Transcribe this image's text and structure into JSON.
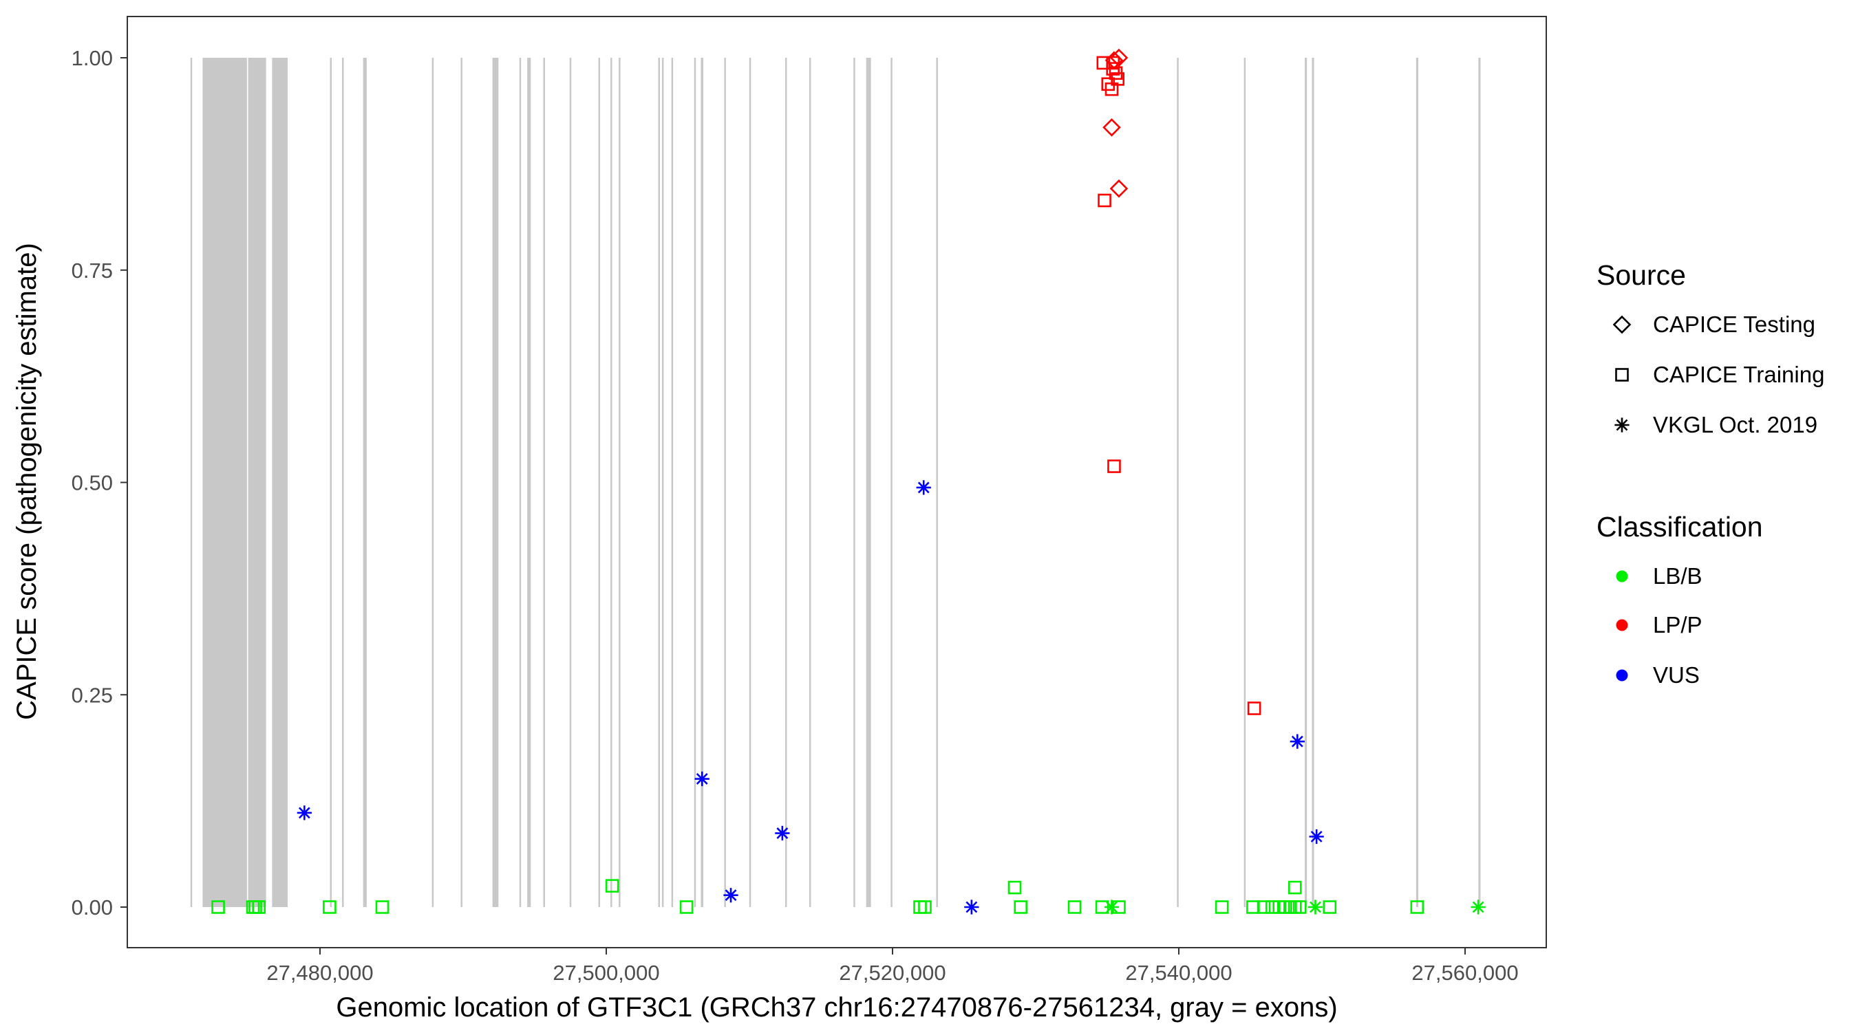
{
  "chart_data": {
    "type": "scatter",
    "xlabel": "Genomic location of GTF3C1 (GRCh37 chr16:27470876-27561234, gray = exons)",
    "ylabel": "CAPICE score (pathogenicity estimate)",
    "xlim": [
      27469000,
      27563000
    ],
    "ylim": [
      -0.046,
      1.05
    ],
    "x_ticks": [
      27480000,
      27500000,
      27520000,
      27540000,
      27560000
    ],
    "x_tick_labels": [
      "27,480,000",
      "27,500,000",
      "27,520,000",
      "27,540,000",
      "27,560,000"
    ],
    "y_ticks": [
      0,
      0.25,
      0.5,
      0.75,
      1.0
    ],
    "y_tick_labels": [
      "0.00",
      "0.25",
      "0.50",
      "0.75",
      "1.00"
    ],
    "grid": false,
    "exon_color": "#c8c8c8",
    "exons": [
      [
        27470950,
        27471050
      ],
      [
        27471799,
        27474896
      ],
      [
        27474979,
        27476234
      ],
      [
        27476653,
        27477741
      ],
      [
        27480700,
        27480800
      ],
      [
        27481540,
        27481640
      ],
      [
        27483012,
        27483264
      ],
      [
        27487820,
        27487920
      ],
      [
        27489830,
        27489930
      ],
      [
        27492050,
        27492468
      ],
      [
        27493930,
        27494030
      ],
      [
        27494477,
        27494728
      ],
      [
        27495600,
        27495700
      ],
      [
        27497440,
        27497540
      ],
      [
        27499450,
        27499550
      ],
      [
        27500290,
        27500390
      ],
      [
        27500870,
        27500970
      ],
      [
        27503630,
        27503730
      ],
      [
        27503890,
        27503990
      ],
      [
        27504550,
        27504650
      ],
      [
        27506140,
        27506240
      ],
      [
        27506611,
        27506778
      ],
      [
        27508240,
        27508340
      ],
      [
        27509990,
        27510090
      ],
      [
        27512500,
        27512600
      ],
      [
        27514180,
        27514280
      ],
      [
        27517270,
        27517370
      ],
      [
        27518158,
        27518493
      ],
      [
        27519870,
        27519970
      ],
      [
        27523050,
        27523150
      ],
      [
        27539870,
        27539970
      ],
      [
        27544550,
        27544650
      ],
      [
        27548800,
        27548950
      ],
      [
        27549300,
        27549450
      ],
      [
        27556580,
        27556730
      ],
      [
        27560930,
        27561080
      ]
    ],
    "legend": {
      "placement": "right",
      "source_title": "Source",
      "source_items": [
        {
          "label": "CAPICE Testing",
          "shape": "diamond"
        },
        {
          "label": "CAPICE Training",
          "shape": "square"
        },
        {
          "label": "VKGL Oct. 2019",
          "shape": "asterisk"
        }
      ],
      "class_title": "Classification",
      "class_items": [
        {
          "label": "LB/B",
          "color": "#00ee00"
        },
        {
          "label": "LP/P",
          "color": "#ff0000"
        },
        {
          "label": "VUS",
          "color": "#0000ff"
        }
      ]
    },
    "points": [
      {
        "x": 27478912,
        "y": 0.111,
        "source": "VKGL Oct. 2019",
        "class": "VUS"
      },
      {
        "x": 27506694,
        "y": 0.151,
        "source": "VKGL Oct. 2019",
        "class": "VUS"
      },
      {
        "x": 27508703,
        "y": 0.014,
        "source": "VKGL Oct. 2019",
        "class": "VUS"
      },
      {
        "x": 27512301,
        "y": 0.087,
        "source": "VKGL Oct. 2019",
        "class": "VUS"
      },
      {
        "x": 27522175,
        "y": 0.494,
        "source": "VKGL Oct. 2019",
        "class": "VUS"
      },
      {
        "x": 27525522,
        "y": 0.0,
        "source": "VKGL Oct. 2019",
        "class": "VUS"
      },
      {
        "x": 27548284,
        "y": 0.195,
        "source": "VKGL Oct. 2019",
        "class": "VUS"
      },
      {
        "x": 27549623,
        "y": 0.083,
        "source": "VKGL Oct. 2019",
        "class": "VUS"
      },
      {
        "x": 27535313,
        "y": 0.0,
        "source": "VKGL Oct. 2019",
        "class": "LB/B"
      },
      {
        "x": 27549540,
        "y": 0.0,
        "source": "VKGL Oct. 2019",
        "class": "LB/B"
      },
      {
        "x": 27560920,
        "y": 0.0,
        "source": "VKGL Oct. 2019",
        "class": "LB/B"
      },
      {
        "x": 27535815,
        "y": 1.0,
        "source": "CAPICE Testing",
        "class": "LP/P"
      },
      {
        "x": 27535480,
        "y": 0.997,
        "source": "CAPICE Testing",
        "class": "LP/P"
      },
      {
        "x": 27535313,
        "y": 0.918,
        "source": "CAPICE Testing",
        "class": "LP/P"
      },
      {
        "x": 27535815,
        "y": 0.846,
        "source": "CAPICE Testing",
        "class": "LP/P"
      },
      {
        "x": 27534727,
        "y": 0.994,
        "source": "CAPICE Training",
        "class": "LP/P"
      },
      {
        "x": 27535400,
        "y": 0.994,
        "source": "CAPICE Training",
        "class": "LP/P"
      },
      {
        "x": 27535396,
        "y": 0.987,
        "source": "CAPICE Training",
        "class": "LP/P"
      },
      {
        "x": 27535731,
        "y": 0.975,
        "source": "CAPICE Training",
        "class": "LP/P"
      },
      {
        "x": 27535062,
        "y": 0.969,
        "source": "CAPICE Training",
        "class": "LP/P"
      },
      {
        "x": 27535313,
        "y": 0.963,
        "source": "CAPICE Training",
        "class": "LP/P"
      },
      {
        "x": 27535600,
        "y": 0.982,
        "source": "CAPICE Training",
        "class": "LP/P"
      },
      {
        "x": 27534811,
        "y": 0.832,
        "source": "CAPICE Training",
        "class": "LP/P"
      },
      {
        "x": 27535480,
        "y": 0.519,
        "source": "CAPICE Training",
        "class": "LP/P"
      },
      {
        "x": 27545270,
        "y": 0.234,
        "source": "CAPICE Training",
        "class": "LP/P"
      },
      {
        "x": 27472887,
        "y": 0.0,
        "source": "CAPICE Training",
        "class": "LB/B"
      },
      {
        "x": 27475314,
        "y": 0.0,
        "source": "CAPICE Training",
        "class": "LB/B"
      },
      {
        "x": 27475481,
        "y": 0.0,
        "source": "CAPICE Training",
        "class": "LB/B"
      },
      {
        "x": 27475732,
        "y": 0.0,
        "source": "CAPICE Training",
        "class": "LB/B"
      },
      {
        "x": 27480669,
        "y": 0.0,
        "source": "CAPICE Training",
        "class": "LB/B"
      },
      {
        "x": 27484351,
        "y": 0.0,
        "source": "CAPICE Training",
        "class": "LB/B"
      },
      {
        "x": 27500418,
        "y": 0.025,
        "source": "CAPICE Training",
        "class": "LB/B"
      },
      {
        "x": 27505606,
        "y": 0.0,
        "source": "CAPICE Training",
        "class": "LB/B"
      },
      {
        "x": 27521924,
        "y": 0.0,
        "source": "CAPICE Training",
        "class": "LB/B"
      },
      {
        "x": 27522259,
        "y": 0.0,
        "source": "CAPICE Training",
        "class": "LB/B"
      },
      {
        "x": 27528534,
        "y": 0.023,
        "source": "CAPICE Training",
        "class": "LB/B"
      },
      {
        "x": 27528953,
        "y": 0.0,
        "source": "CAPICE Training",
        "class": "LB/B"
      },
      {
        "x": 27532718,
        "y": 0.0,
        "source": "CAPICE Training",
        "class": "LB/B"
      },
      {
        "x": 27534643,
        "y": 0.0,
        "source": "CAPICE Training",
        "class": "LB/B"
      },
      {
        "x": 27535815,
        "y": 0.0,
        "source": "CAPICE Training",
        "class": "LB/B"
      },
      {
        "x": 27543011,
        "y": 0.0,
        "source": "CAPICE Training",
        "class": "LB/B"
      },
      {
        "x": 27545187,
        "y": 0.0,
        "source": "CAPICE Training",
        "class": "LB/B"
      },
      {
        "x": 27545940,
        "y": 0.0,
        "source": "CAPICE Training",
        "class": "LB/B"
      },
      {
        "x": 27546526,
        "y": 0.0,
        "source": "CAPICE Training",
        "class": "LB/B"
      },
      {
        "x": 27547028,
        "y": 0.0,
        "source": "CAPICE Training",
        "class": "LB/B"
      },
      {
        "x": 27547446,
        "y": 0.0,
        "source": "CAPICE Training",
        "class": "LB/B"
      },
      {
        "x": 27547781,
        "y": 0.0,
        "source": "CAPICE Training",
        "class": "LB/B"
      },
      {
        "x": 27548116,
        "y": 0.0,
        "source": "CAPICE Training",
        "class": "LB/B"
      },
      {
        "x": 27548116,
        "y": 0.023,
        "source": "CAPICE Training",
        "class": "LB/B"
      },
      {
        "x": 27548451,
        "y": 0.0,
        "source": "CAPICE Training",
        "class": "LB/B"
      },
      {
        "x": 27550543,
        "y": 0.0,
        "source": "CAPICE Training",
        "class": "LB/B"
      },
      {
        "x": 27556651,
        "y": 0.0,
        "source": "CAPICE Training",
        "class": "LB/B"
      }
    ]
  }
}
